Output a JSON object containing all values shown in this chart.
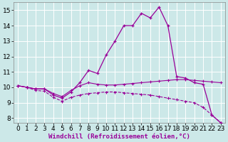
{
  "background_color": "#cce8e8",
  "grid_color": "#ffffff",
  "line_color": "#990099",
  "xlabel": "Windchill (Refroidissement éolien,°C)",
  "xlim": [
    -0.5,
    23.5
  ],
  "ylim": [
    7.7,
    15.5
  ],
  "yticks": [
    8,
    9,
    10,
    11,
    12,
    13,
    14,
    15
  ],
  "xticks": [
    0,
    1,
    2,
    3,
    4,
    5,
    6,
    7,
    8,
    9,
    10,
    11,
    12,
    13,
    14,
    15,
    16,
    17,
    18,
    19,
    20,
    21,
    22,
    23
  ],
  "series": [
    {
      "x": [
        0,
        1,
        2,
        3,
        4,
        5,
        6,
        7,
        8,
        9,
        10,
        11,
        12,
        13,
        14,
        15,
        16,
        17,
        18,
        19,
        20,
        21,
        22,
        23
      ],
      "y": [
        10.1,
        10.0,
        9.9,
        9.9,
        9.5,
        9.3,
        9.7,
        10.3,
        11.1,
        10.9,
        12.1,
        13.0,
        14.0,
        14.0,
        14.8,
        14.5,
        15.2,
        14.0,
        10.7,
        10.6,
        10.3,
        10.2,
        8.2,
        7.7
      ],
      "ls": "-",
      "lw": 0.9,
      "marker": "+",
      "ms": 3.5
    },
    {
      "x": [
        0,
        1,
        2,
        3,
        4,
        5,
        6,
        7,
        8,
        9,
        10,
        11,
        12,
        13,
        14,
        15,
        16,
        17,
        18,
        19,
        20,
        21,
        22,
        23
      ],
      "y": [
        10.1,
        10.0,
        9.9,
        9.9,
        9.6,
        9.4,
        9.8,
        10.1,
        10.3,
        10.2,
        10.15,
        10.15,
        10.2,
        10.25,
        10.3,
        10.35,
        10.4,
        10.45,
        10.5,
        10.5,
        10.45,
        10.4,
        10.35,
        10.3
      ],
      "ls": "-",
      "lw": 0.8,
      "marker": "+",
      "ms": 2.5
    },
    {
      "x": [
        0,
        1,
        2,
        3,
        4,
        5,
        6,
        7,
        8,
        9,
        10,
        11,
        12,
        13,
        14,
        15,
        16,
        17,
        18,
        19,
        20,
        21,
        22,
        23
      ],
      "y": [
        10.1,
        10.0,
        9.8,
        9.75,
        9.35,
        9.1,
        9.35,
        9.5,
        9.6,
        9.65,
        9.7,
        9.7,
        9.65,
        9.6,
        9.55,
        9.5,
        9.4,
        9.3,
        9.2,
        9.1,
        9.0,
        8.7,
        8.2,
        7.7
      ],
      "ls": "--",
      "lw": 0.8,
      "marker": "+",
      "ms": 2.5
    }
  ],
  "xlabel_fontsize": 6.5,
  "tick_fontsize": 6.5,
  "xlabel_color": "#990099",
  "xlabel_bold": true
}
